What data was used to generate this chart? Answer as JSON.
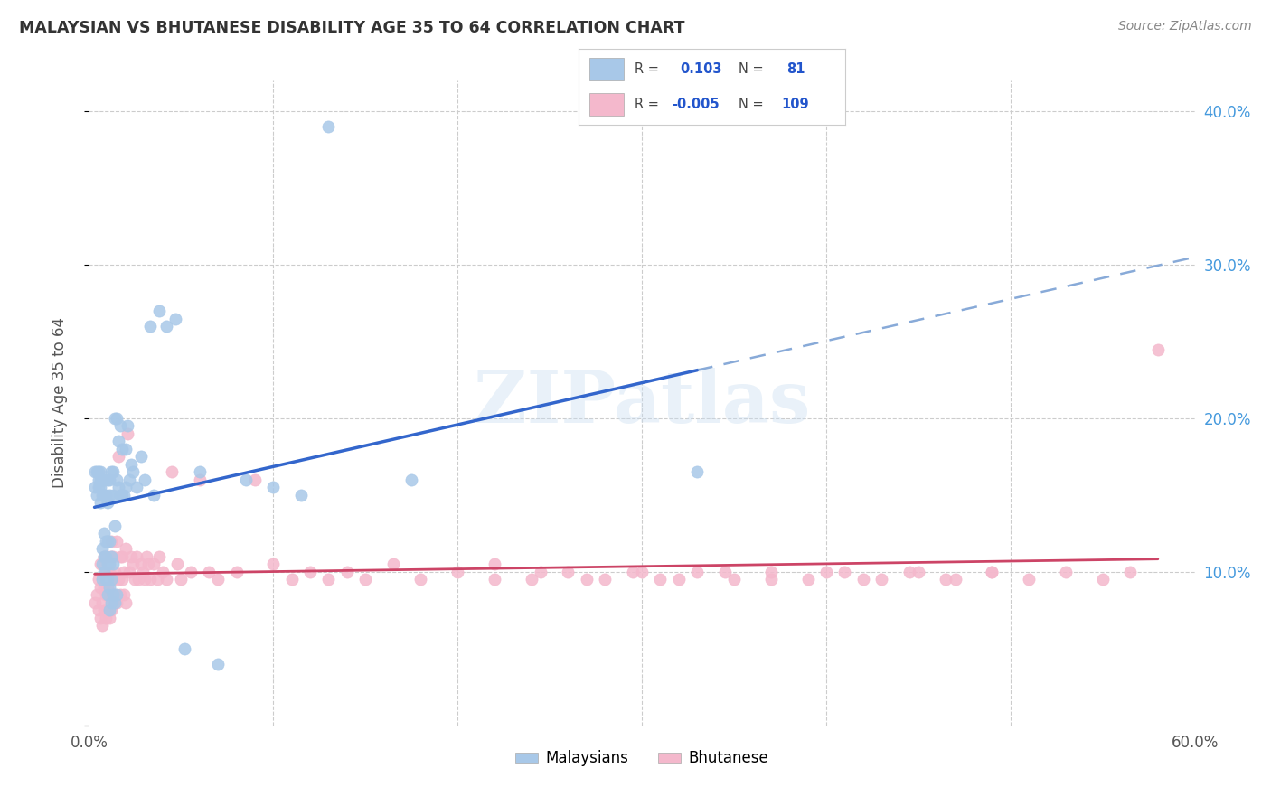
{
  "title": "MALAYSIAN VS BHUTANESE DISABILITY AGE 35 TO 64 CORRELATION CHART",
  "source": "Source: ZipAtlas.com",
  "ylabel": "Disability Age 35 to 64",
  "xlim": [
    0.0,
    0.6
  ],
  "ylim": [
    0.0,
    0.42
  ],
  "xtick_positions": [
    0.0,
    0.1,
    0.2,
    0.3,
    0.4,
    0.5,
    0.6
  ],
  "xticklabels": [
    "0.0%",
    "",
    "",
    "",
    "",
    "",
    "60.0%"
  ],
  "ytick_positions": [
    0.0,
    0.1,
    0.2,
    0.3,
    0.4
  ],
  "ytick_labels_right": [
    "",
    "10.0%",
    "20.0%",
    "30.0%",
    "40.0%"
  ],
  "malaysian_color": "#a8c8e8",
  "bhutanese_color": "#f4b8cc",
  "trend_malaysian_color": "#3366cc",
  "trend_bhutanese_color": "#cc4466",
  "watermark": "ZIPatlas",
  "malaysians_x": [
    0.003,
    0.003,
    0.004,
    0.004,
    0.005,
    0.005,
    0.005,
    0.006,
    0.006,
    0.006,
    0.006,
    0.007,
    0.007,
    0.007,
    0.007,
    0.007,
    0.008,
    0.008,
    0.008,
    0.008,
    0.008,
    0.009,
    0.009,
    0.009,
    0.009,
    0.01,
    0.01,
    0.01,
    0.01,
    0.01,
    0.01,
    0.011,
    0.011,
    0.011,
    0.011,
    0.011,
    0.011,
    0.012,
    0.012,
    0.012,
    0.012,
    0.013,
    0.013,
    0.013,
    0.013,
    0.014,
    0.014,
    0.014,
    0.015,
    0.015,
    0.015,
    0.016,
    0.016,
    0.017,
    0.017,
    0.018,
    0.018,
    0.019,
    0.02,
    0.02,
    0.021,
    0.022,
    0.023,
    0.024,
    0.026,
    0.028,
    0.03,
    0.033,
    0.035,
    0.038,
    0.042,
    0.047,
    0.052,
    0.06,
    0.07,
    0.085,
    0.1,
    0.115,
    0.13,
    0.175,
    0.33
  ],
  "malaysians_y": [
    0.155,
    0.165,
    0.15,
    0.165,
    0.155,
    0.16,
    0.165,
    0.145,
    0.155,
    0.16,
    0.165,
    0.095,
    0.105,
    0.115,
    0.15,
    0.16,
    0.1,
    0.11,
    0.125,
    0.15,
    0.16,
    0.095,
    0.11,
    0.12,
    0.15,
    0.085,
    0.095,
    0.105,
    0.12,
    0.145,
    0.16,
    0.075,
    0.09,
    0.105,
    0.12,
    0.15,
    0.16,
    0.08,
    0.095,
    0.11,
    0.165,
    0.085,
    0.105,
    0.15,
    0.165,
    0.08,
    0.13,
    0.2,
    0.085,
    0.16,
    0.2,
    0.155,
    0.185,
    0.15,
    0.195,
    0.15,
    0.18,
    0.15,
    0.155,
    0.18,
    0.195,
    0.16,
    0.17,
    0.165,
    0.155,
    0.175,
    0.16,
    0.26,
    0.15,
    0.27,
    0.26,
    0.265,
    0.05,
    0.165,
    0.04,
    0.16,
    0.155,
    0.15,
    0.39,
    0.16,
    0.165
  ],
  "bhutanese_x": [
    0.003,
    0.004,
    0.005,
    0.005,
    0.006,
    0.006,
    0.006,
    0.007,
    0.007,
    0.008,
    0.008,
    0.008,
    0.009,
    0.009,
    0.009,
    0.01,
    0.01,
    0.01,
    0.011,
    0.011,
    0.011,
    0.012,
    0.012,
    0.012,
    0.013,
    0.013,
    0.013,
    0.014,
    0.014,
    0.015,
    0.015,
    0.016,
    0.016,
    0.017,
    0.017,
    0.018,
    0.018,
    0.019,
    0.019,
    0.02,
    0.02,
    0.021,
    0.022,
    0.023,
    0.024,
    0.025,
    0.026,
    0.027,
    0.028,
    0.029,
    0.03,
    0.031,
    0.032,
    0.033,
    0.035,
    0.037,
    0.038,
    0.04,
    0.042,
    0.045,
    0.048,
    0.05,
    0.055,
    0.06,
    0.065,
    0.07,
    0.08,
    0.09,
    0.1,
    0.11,
    0.12,
    0.13,
    0.14,
    0.15,
    0.165,
    0.18,
    0.2,
    0.22,
    0.245,
    0.27,
    0.295,
    0.32,
    0.345,
    0.37,
    0.4,
    0.42,
    0.445,
    0.465,
    0.49,
    0.51,
    0.53,
    0.55,
    0.565,
    0.58,
    0.22,
    0.24,
    0.26,
    0.28,
    0.3,
    0.31,
    0.33,
    0.35,
    0.37,
    0.39,
    0.41,
    0.43,
    0.45,
    0.47,
    0.49
  ],
  "bhutanese_y": [
    0.08,
    0.085,
    0.075,
    0.095,
    0.07,
    0.09,
    0.105,
    0.065,
    0.08,
    0.075,
    0.09,
    0.11,
    0.07,
    0.085,
    0.1,
    0.075,
    0.09,
    0.11,
    0.07,
    0.085,
    0.1,
    0.11,
    0.075,
    0.12,
    0.08,
    0.095,
    0.11,
    0.085,
    0.1,
    0.12,
    0.08,
    0.175,
    0.095,
    0.11,
    0.085,
    0.095,
    0.11,
    0.085,
    0.1,
    0.115,
    0.08,
    0.19,
    0.1,
    0.11,
    0.105,
    0.095,
    0.11,
    0.095,
    0.105,
    0.1,
    0.095,
    0.11,
    0.105,
    0.095,
    0.105,
    0.095,
    0.11,
    0.1,
    0.095,
    0.165,
    0.105,
    0.095,
    0.1,
    0.16,
    0.1,
    0.095,
    0.1,
    0.16,
    0.105,
    0.095,
    0.1,
    0.095,
    0.1,
    0.095,
    0.105,
    0.095,
    0.1,
    0.095,
    0.1,
    0.095,
    0.1,
    0.095,
    0.1,
    0.095,
    0.1,
    0.095,
    0.1,
    0.095,
    0.1,
    0.095,
    0.1,
    0.095,
    0.1,
    0.245,
    0.105,
    0.095,
    0.1,
    0.095,
    0.1,
    0.095,
    0.1,
    0.095,
    0.1,
    0.095,
    0.1,
    0.095,
    0.1,
    0.095,
    0.1
  ]
}
